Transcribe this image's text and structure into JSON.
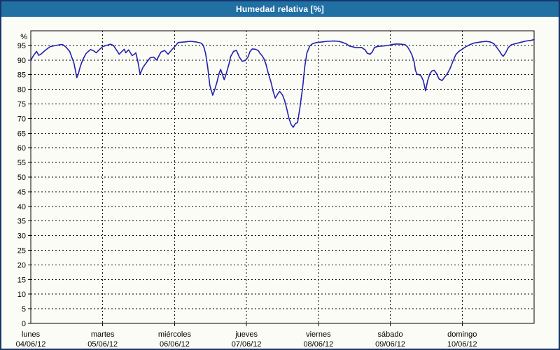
{
  "header": {
    "title": "Humedad relativa [%]"
  },
  "colors": {
    "header_bg": "#2170a4",
    "header_text": "#ffffff",
    "window_border": "#16366e",
    "background": "#fcfcf6",
    "grid": "#000000",
    "axis": "#000000",
    "line": "#2121b0"
  },
  "chart_data": {
    "type": "line",
    "title": "Humedad relativa [%]",
    "ylabel": "%",
    "unit_label": "%",
    "ylim": [
      0,
      100
    ],
    "ytick_step": 5,
    "ytick_min": 0,
    "ytick_max": 95,
    "grid": true,
    "legend_position": "none",
    "x_axis_days": [
      {
        "name": "lunes",
        "date": "04/06/12"
      },
      {
        "name": "martes",
        "date": "05/06/12"
      },
      {
        "name": "miércoles",
        "date": "06/06/12"
      },
      {
        "name": "jueves",
        "date": "07/06/12"
      },
      {
        "name": "viernes",
        "date": "08/06/12"
      },
      {
        "name": "sábado",
        "date": "09/06/12"
      },
      {
        "name": "domingo",
        "date": "10/06/12"
      }
    ],
    "series": [
      {
        "name": "Humedad relativa",
        "color": "#2121b0",
        "points": [
          [
            0.0,
            90.0
          ],
          [
            0.04,
            91.6
          ],
          [
            0.08,
            93.0
          ],
          [
            0.11,
            91.6
          ],
          [
            0.14,
            92.0
          ],
          [
            0.2,
            93.3
          ],
          [
            0.27,
            94.6
          ],
          [
            0.35,
            95.0
          ],
          [
            0.42,
            95.3
          ],
          [
            0.45,
            95.2
          ],
          [
            0.49,
            94.4
          ],
          [
            0.54,
            93.0
          ],
          [
            0.57,
            91.0
          ],
          [
            0.6,
            89.0
          ],
          [
            0.62,
            86.5
          ],
          [
            0.64,
            84.0
          ],
          [
            0.66,
            85.2
          ],
          [
            0.69,
            88.0
          ],
          [
            0.73,
            90.5
          ],
          [
            0.77,
            92.3
          ],
          [
            0.83,
            93.6
          ],
          [
            0.87,
            93.2
          ],
          [
            0.91,
            92.5
          ],
          [
            0.95,
            93.5
          ],
          [
            1.0,
            94.6
          ],
          [
            1.05,
            95.0
          ],
          [
            1.11,
            95.4
          ],
          [
            1.15,
            95.0
          ],
          [
            1.19,
            93.5
          ],
          [
            1.23,
            92.0
          ],
          [
            1.27,
            93.0
          ],
          [
            1.3,
            93.7
          ],
          [
            1.32,
            92.5
          ],
          [
            1.36,
            93.5
          ],
          [
            1.41,
            91.5
          ],
          [
            1.44,
            92.0
          ],
          [
            1.46,
            92.5
          ],
          [
            1.49,
            89.5
          ],
          [
            1.52,
            85.2
          ],
          [
            1.56,
            87.5
          ],
          [
            1.61,
            89.2
          ],
          [
            1.66,
            90.8
          ],
          [
            1.71,
            91.0
          ],
          [
            1.75,
            90.0
          ],
          [
            1.81,
            92.7
          ],
          [
            1.86,
            93.3
          ],
          [
            1.91,
            92.0
          ],
          [
            1.96,
            93.5
          ],
          [
            2.01,
            94.8
          ],
          [
            2.05,
            96.0
          ],
          [
            2.14,
            96.2
          ],
          [
            2.22,
            96.4
          ],
          [
            2.3,
            96.2
          ],
          [
            2.37,
            95.8
          ],
          [
            2.4,
            95.0
          ],
          [
            2.43,
            92.4
          ],
          [
            2.46,
            87.6
          ],
          [
            2.49,
            81.3
          ],
          [
            2.53,
            78.0
          ],
          [
            2.56,
            80.0
          ],
          [
            2.59,
            82.5
          ],
          [
            2.62,
            85.5
          ],
          [
            2.64,
            86.8
          ],
          [
            2.67,
            84.8
          ],
          [
            2.69,
            83.3
          ],
          [
            2.72,
            85.5
          ],
          [
            2.76,
            89.0
          ],
          [
            2.78,
            91.2
          ],
          [
            2.82,
            93.0
          ],
          [
            2.86,
            93.3
          ],
          [
            2.9,
            91.0
          ],
          [
            2.94,
            89.6
          ],
          [
            2.98,
            89.8
          ],
          [
            3.02,
            91.0
          ],
          [
            3.05,
            93.0
          ],
          [
            3.08,
            93.8
          ],
          [
            3.12,
            93.7
          ],
          [
            3.16,
            93.3
          ],
          [
            3.19,
            92.2
          ],
          [
            3.21,
            91.7
          ],
          [
            3.24,
            90.6
          ],
          [
            3.27,
            88.6
          ],
          [
            3.3,
            85.7
          ],
          [
            3.34,
            82.5
          ],
          [
            3.37,
            79.4
          ],
          [
            3.4,
            77.0
          ],
          [
            3.43,
            78.2
          ],
          [
            3.46,
            79.3
          ],
          [
            3.5,
            78.1
          ],
          [
            3.53,
            76.2
          ],
          [
            3.56,
            73.3
          ],
          [
            3.59,
            70.2
          ],
          [
            3.62,
            68.0
          ],
          [
            3.65,
            67.0
          ],
          [
            3.68,
            68.3
          ],
          [
            3.71,
            68.6
          ],
          [
            3.74,
            73.3
          ],
          [
            3.78,
            80.5
          ],
          [
            3.81,
            87.6
          ],
          [
            3.84,
            92.4
          ],
          [
            3.88,
            94.8
          ],
          [
            3.92,
            95.6
          ],
          [
            3.98,
            96.0
          ],
          [
            4.05,
            96.2
          ],
          [
            4.12,
            96.4
          ],
          [
            4.22,
            96.5
          ],
          [
            4.28,
            96.4
          ],
          [
            4.34,
            96.0
          ],
          [
            4.39,
            95.5
          ],
          [
            4.43,
            94.8
          ],
          [
            4.48,
            94.5
          ],
          [
            4.53,
            94.2
          ],
          [
            4.6,
            94.3
          ],
          [
            4.65,
            93.5
          ],
          [
            4.68,
            92.3
          ],
          [
            4.72,
            92.0
          ],
          [
            4.75,
            92.8
          ],
          [
            4.78,
            94.3
          ],
          [
            4.83,
            94.7
          ],
          [
            4.9,
            94.8
          ],
          [
            4.97,
            95.0
          ],
          [
            5.02,
            95.3
          ],
          [
            5.09,
            95.5
          ],
          [
            5.16,
            95.4
          ],
          [
            5.21,
            95.2
          ],
          [
            5.24,
            94.5
          ],
          [
            5.27,
            93.3
          ],
          [
            5.3,
            91.8
          ],
          [
            5.33,
            89.5
          ],
          [
            5.35,
            86.5
          ],
          [
            5.37,
            85.2
          ],
          [
            5.4,
            85.0
          ],
          [
            5.43,
            84.5
          ],
          [
            5.46,
            82.9
          ],
          [
            5.49,
            79.5
          ],
          [
            5.52,
            83.0
          ],
          [
            5.55,
            85.3
          ],
          [
            5.58,
            86.3
          ],
          [
            5.61,
            86.5
          ],
          [
            5.64,
            85.5
          ],
          [
            5.68,
            83.5
          ],
          [
            5.72,
            83.0
          ],
          [
            5.76,
            84.3
          ],
          [
            5.79,
            85.2
          ],
          [
            5.83,
            87.0
          ],
          [
            5.87,
            89.5
          ],
          [
            5.91,
            91.8
          ],
          [
            5.95,
            92.9
          ],
          [
            6.0,
            93.7
          ],
          [
            6.04,
            94.4
          ],
          [
            6.1,
            95.2
          ],
          [
            6.16,
            95.8
          ],
          [
            6.26,
            96.2
          ],
          [
            6.33,
            96.4
          ],
          [
            6.39,
            96.2
          ],
          [
            6.44,
            95.6
          ],
          [
            6.48,
            94.3
          ],
          [
            6.52,
            93.0
          ],
          [
            6.55,
            91.8
          ],
          [
            6.57,
            91.3
          ],
          [
            6.6,
            92.3
          ],
          [
            6.64,
            94.2
          ],
          [
            6.68,
            95.2
          ],
          [
            6.74,
            95.6
          ],
          [
            6.82,
            96.1
          ],
          [
            6.89,
            96.5
          ],
          [
            6.95,
            96.7
          ],
          [
            7.0,
            97.0
          ]
        ]
      }
    ]
  }
}
